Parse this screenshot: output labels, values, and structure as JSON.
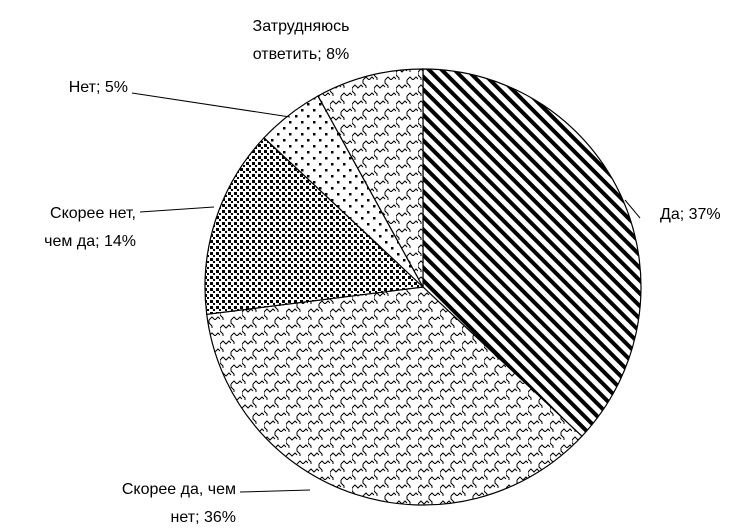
{
  "chart_data": {
    "type": "pie",
    "values": [
      37,
      36,
      14,
      5,
      8
    ],
    "value_labels": [
      [
        "Да; 37%"
      ],
      [
        "Скорее да, чем",
        "нет; 36%"
      ],
      [
        "Скорее нет,",
        "чем да; 14%"
      ],
      [
        "Нет; 5%"
      ],
      [
        "Затрудняюсь",
        "ответить; 8%"
      ]
    ]
  }
}
